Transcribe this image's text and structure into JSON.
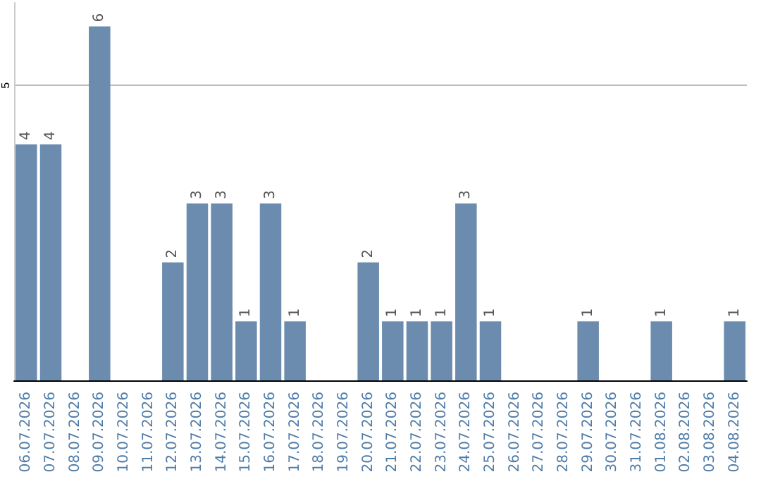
{
  "chart_data": {
    "type": "bar",
    "categories": [
      "06.07.2026",
      "07.07.2026",
      "08.07.2026",
      "09.07.2026",
      "10.07.2026",
      "11.07.2026",
      "12.07.2026",
      "13.07.2026",
      "14.07.2026",
      "15.07.2026",
      "16.07.2026",
      "17.07.2026",
      "18.07.2026",
      "19.07.2026",
      "20.07.2026",
      "21.07.2026",
      "22.07.2026",
      "23.07.2026",
      "24.07.2026",
      "25.07.2026",
      "26.07.2026",
      "27.07.2026",
      "28.07.2026",
      "29.07.2026",
      "30.07.2026",
      "31.07.2026",
      "01.08.2026",
      "02.08.2026",
      "03.08.2026",
      "04.08.2026"
    ],
    "values": [
      4,
      4,
      0,
      6,
      0,
      0,
      2,
      3,
      3,
      1,
      3,
      1,
      0,
      0,
      2,
      1,
      1,
      1,
      3,
      1,
      0,
      0,
      0,
      1,
      0,
      0,
      1,
      0,
      0,
      1
    ],
    "value_labels": [
      "4",
      "4",
      null,
      "6",
      null,
      null,
      "2",
      "3",
      "3",
      "1",
      "3",
      "1",
      null,
      null,
      "2",
      "1",
      "1",
      "1",
      "3",
      "1",
      null,
      null,
      null,
      "1",
      null,
      null,
      "1",
      null,
      null,
      "1"
    ],
    "color": "#6b8cae",
    "ylim": [
      0,
      6.4
    ],
    "yticks": [
      5
    ],
    "grid": "y"
  }
}
